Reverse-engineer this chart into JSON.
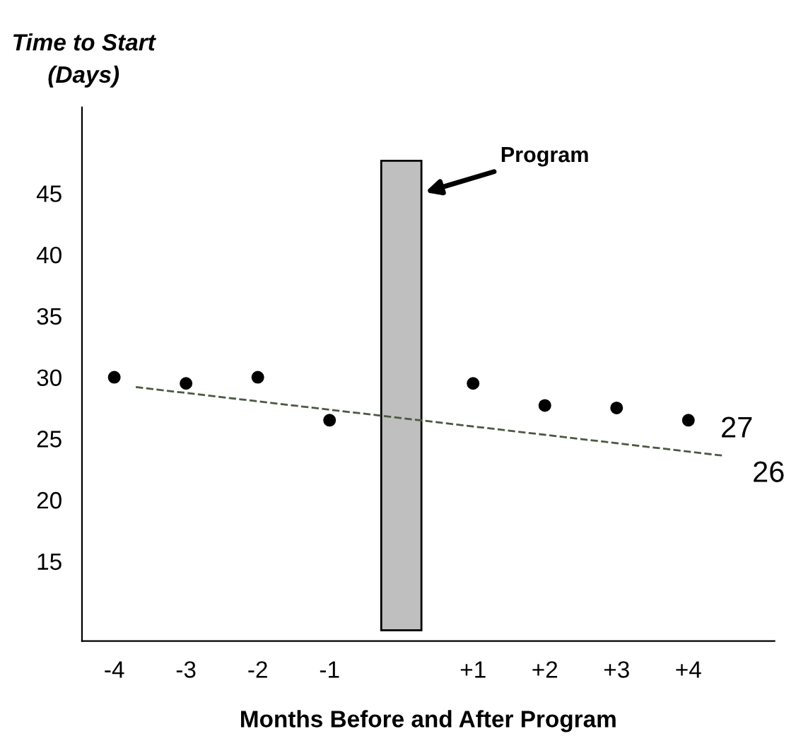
{
  "chart_data": {
    "type": "scatter",
    "ylabel": "Time to Start\n(Days)",
    "xlabel": "Months Before and After Program",
    "series": [
      {
        "color": "#000000",
        "marker": "circle",
        "x": [
          -4,
          -3,
          -2,
          -1,
          1,
          2,
          3,
          4
        ],
        "values": [
          30,
          29.5,
          30,
          26.5,
          29.5,
          27.7,
          27.5,
          26.5
        ]
      },
      {
        "type": "line",
        "color": "#4a5a40",
        "line_style": "dashed",
        "marker": "none",
        "x": [
          -3.7,
          4.5
        ],
        "values": [
          29.2,
          23.6
        ]
      }
    ],
    "xlim": [
      -4.45,
      5.2
    ],
    "ylim": [
      8.5,
      52
    ],
    "xticks": [
      -4,
      -3,
      -2,
      -1,
      {
        "value": 1,
        "label": "+1"
      },
      {
        "value": 2,
        "label": "+2"
      },
      {
        "value": 3,
        "label": "+3"
      },
      {
        "value": 4,
        "label": "+4"
      }
    ],
    "yticks": [
      15,
      20,
      25,
      30,
      35,
      40,
      45
    ],
    "bands": [
      {
        "axis": "x",
        "from": -0.28,
        "to": 0.28,
        "label": "Program",
        "color": "#bfbfbf"
      }
    ],
    "annotations": [
      "27",
      "26"
    ],
    "grid": false,
    "legend": false
  }
}
